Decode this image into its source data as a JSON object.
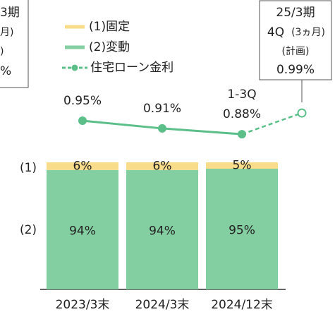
{
  "chart_data": {
    "type": "stacked_bar_line",
    "categories": [
      "2023/3末",
      "2024/3末",
      "2024/12末"
    ],
    "ylim": [
      0,
      100
    ],
    "y_labels": [
      "(1)",
      "(2)"
    ],
    "series": [
      {
        "name": "(1)固定",
        "color": "#f8dc8a",
        "values": [
          6,
          6,
          5
        ],
        "value_labels": [
          "6%",
          "6%",
          "5%"
        ]
      },
      {
        "name": "(2)変動",
        "color": "#84cfa2",
        "values": [
          94,
          94,
          95
        ],
        "value_labels": [
          "94%",
          "94%",
          "95%"
        ]
      }
    ],
    "line": {
      "name": "住宅ローン金利",
      "color": "#5cbf8a",
      "axis": "y2",
      "values": [
        0.95,
        0.91,
        0.88
      ],
      "value_labels": [
        "0.95%",
        "0.91%",
        "0.88%"
      ],
      "period_note": "1-3Q"
    },
    "y2lim": [
      0.8,
      1.1
    ],
    "forecast": {
      "lines": [
        "25/3期",
        "4Q",
        "(3ヵ月)",
        "(計画)"
      ],
      "value": 0.99,
      "value_label": "0.99%"
    },
    "left_box_lines": [
      "3期",
      "月)",
      ")",
      "%"
    ]
  }
}
